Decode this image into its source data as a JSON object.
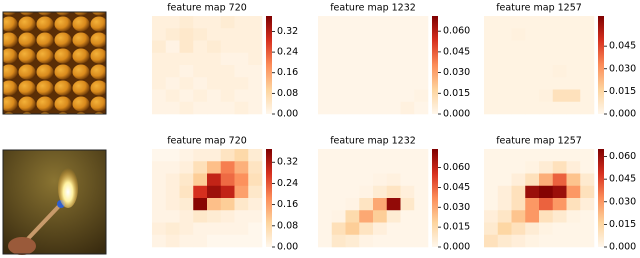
{
  "colormap": [
    "#fff7ec",
    "#fdd49e",
    "#fc8d59",
    "#d7301f",
    "#7f0000"
  ],
  "chart_data": [
    {
      "type": "heatmap",
      "title": "feature map 720",
      "clim": [
        0,
        0.38
      ],
      "cticks": [
        {
          "value": 0,
          "label": "0.00"
        },
        0.08,
        0.16,
        0.24,
        0.32
      ],
      "values": [
        [
          0.02,
          0.02,
          0.03,
          0.02,
          0.02,
          0.03,
          0.02,
          0.02
        ],
        [
          0.02,
          0.03,
          0.04,
          0.03,
          0.02,
          0.02,
          0.02,
          0.02
        ],
        [
          0.03,
          0.01,
          0.04,
          0.02,
          0.03,
          0.02,
          0.02,
          0.02
        ],
        [
          0.02,
          0.02,
          0.02,
          0.02,
          0.02,
          0.01,
          0.01,
          0.02
        ],
        [
          0.02,
          0.02,
          0.01,
          0.02,
          0.02,
          0.02,
          0.01,
          0.01
        ],
        [
          0.02,
          0.01,
          0.02,
          0.01,
          0.02,
          0.02,
          0.02,
          0.01
        ],
        [
          0.01,
          0.02,
          0.01,
          0.02,
          0.01,
          0.02,
          0.01,
          0.01
        ],
        [
          0.01,
          0.01,
          0.02,
          0.01,
          0.01,
          0.01,
          0.02,
          0.01
        ]
      ]
    },
    {
      "type": "heatmap",
      "title": "feature map 1232",
      "clim": [
        0,
        0.071
      ],
      "cticks": [
        {
          "value": 0,
          "label": "0.000"
        },
        0.015,
        {
          "value": 0.03,
          "label": "0.030"
        },
        0.045,
        {
          "value": 0.06,
          "label": "0.060"
        }
      ],
      "values": [
        [
          0.001,
          0.001,
          0.001,
          0.001,
          0.001,
          0.001,
          0.001,
          0.001
        ],
        [
          0.001,
          0.001,
          0.001,
          0.001,
          0.001,
          0.001,
          0.001,
          0.001
        ],
        [
          0.001,
          0.001,
          0.001,
          0.001,
          0.001,
          0.001,
          0.001,
          0.001
        ],
        [
          0.001,
          0.001,
          0.001,
          0.001,
          0.001,
          0.001,
          0.001,
          0.001
        ],
        [
          0.001,
          0.001,
          0.001,
          0.001,
          0.001,
          0.001,
          0.001,
          0.001
        ],
        [
          0.001,
          0.001,
          0.001,
          0.001,
          0.001,
          0.001,
          0.001,
          0.001
        ],
        [
          0.001,
          0.001,
          0.001,
          0.001,
          0.001,
          0.001,
          0.001,
          0.002
        ],
        [
          0.001,
          0.001,
          0.001,
          0.001,
          0.001,
          0.001,
          0.003,
          0.001
        ]
      ]
    },
    {
      "type": "heatmap",
      "title": "feature map 1257",
      "clim": [
        0,
        0.065
      ],
      "cticks": [
        {
          "value": 0,
          "label": "0.000"
        },
        0.015,
        {
          "value": 0.03,
          "label": "0.030"
        },
        0.045
      ],
      "values": [
        [
          0.002,
          0.002,
          0.002,
          0.002,
          0.002,
          0.002,
          0.002,
          0.002
        ],
        [
          0.002,
          0.002,
          0.003,
          0.002,
          0.002,
          0.002,
          0.002,
          0.002
        ],
        [
          0.002,
          0.002,
          0.002,
          0.002,
          0.002,
          0.002,
          0.002,
          0.002
        ],
        [
          0.002,
          0.002,
          0.002,
          0.002,
          0.002,
          0.002,
          0.002,
          0.002
        ],
        [
          0.002,
          0.002,
          0.002,
          0.002,
          0.002,
          0.003,
          0.002,
          0.002
        ],
        [
          0.002,
          0.002,
          0.002,
          0.002,
          0.002,
          0.002,
          0.002,
          0.002
        ],
        [
          0.002,
          0.002,
          0.002,
          0.002,
          0.003,
          0.01,
          0.01,
          0.002
        ],
        [
          0.002,
          0.002,
          0.002,
          0.002,
          0.002,
          0.002,
          0.002,
          0.002
        ]
      ]
    },
    {
      "type": "heatmap",
      "title": "feature map 720",
      "clim": [
        0,
        0.37
      ],
      "cticks": [
        {
          "value": 0,
          "label": "0.00"
        },
        0.08,
        0.16,
        0.24,
        0.32
      ],
      "values": [
        [
          0,
          0,
          0.01,
          0.02,
          0.02,
          0.05,
          0.08,
          0.03
        ],
        [
          0.01,
          0.01,
          0.02,
          0.06,
          0.12,
          0.2,
          0.14,
          0.05
        ],
        [
          0.01,
          0.02,
          0.04,
          0.1,
          0.3,
          0.22,
          0.18,
          0.06
        ],
        [
          0.01,
          0.02,
          0.05,
          0.28,
          0.34,
          0.3,
          0.16,
          0.04
        ],
        [
          0.01,
          0.02,
          0.03,
          0.36,
          0.12,
          0.1,
          0.04,
          0.02
        ],
        [
          0.01,
          0.01,
          0.02,
          0.04,
          0.03,
          0.02,
          0.01,
          0.01
        ],
        [
          0.02,
          0.03,
          0.02,
          0.01,
          0.01,
          0.01,
          0.01,
          0
        ],
        [
          0.01,
          0.02,
          0.01,
          0.01,
          0,
          0,
          0,
          0
        ]
      ]
    },
    {
      "type": "heatmap",
      "title": "feature map 1232",
      "clim": [
        0,
        0.074
      ],
      "cticks": [
        {
          "value": 0,
          "label": "0.000"
        },
        0.015,
        {
          "value": 0.03,
          "label": "0.030"
        },
        0.045,
        {
          "value": 0.06,
          "label": "0.060"
        }
      ],
      "values": [
        [
          0.001,
          0.001,
          0.001,
          0.001,
          0.001,
          0.001,
          0.001,
          0.001
        ],
        [
          0.001,
          0.001,
          0.001,
          0.001,
          0.001,
          0.001,
          0.001,
          0.001
        ],
        [
          0.001,
          0.001,
          0.001,
          0.001,
          0.002,
          0.003,
          0.001,
          0.001
        ],
        [
          0.001,
          0.001,
          0.001,
          0.002,
          0.006,
          0.01,
          0.004,
          0.001
        ],
        [
          0.001,
          0.001,
          0.002,
          0.01,
          0.03,
          0.07,
          0.008,
          0.001
        ],
        [
          0.001,
          0.002,
          0.015,
          0.03,
          0.02,
          0.006,
          0.001,
          0.001
        ],
        [
          0.001,
          0.012,
          0.02,
          0.01,
          0.004,
          0.001,
          0.001,
          0.001
        ],
        [
          0.001,
          0.008,
          0.006,
          0.002,
          0.001,
          0.001,
          0.001,
          0.001
        ]
      ]
    },
    {
      "type": "heatmap",
      "title": "feature map 1257",
      "clim": [
        0,
        0.065
      ],
      "cticks": [
        {
          "value": 0,
          "label": "0.000"
        },
        0.015,
        {
          "value": 0.03,
          "label": "0.030"
        },
        0.045,
        {
          "value": 0.06,
          "label": "0.060"
        }
      ],
      "values": [
        [
          0.001,
          0.001,
          0.001,
          0.001,
          0.001,
          0.001,
          0.001,
          0.001
        ],
        [
          0.001,
          0.001,
          0.001,
          0.002,
          0.005,
          0.01,
          0.004,
          0.001
        ],
        [
          0.001,
          0.001,
          0.004,
          0.01,
          0.025,
          0.04,
          0.02,
          0.006
        ],
        [
          0.001,
          0.004,
          0.01,
          0.06,
          0.064,
          0.06,
          0.03,
          0.01
        ],
        [
          0.001,
          0.004,
          0.01,
          0.03,
          0.04,
          0.03,
          0.01,
          0.004
        ],
        [
          0.004,
          0.008,
          0.02,
          0.03,
          0.01,
          0.006,
          0.002,
          0.001
        ],
        [
          0.006,
          0.015,
          0.01,
          0.005,
          0.002,
          0.001,
          0.001,
          0.001
        ],
        [
          0.01,
          0.006,
          0.004,
          0.002,
          0.001,
          0.001,
          0.001,
          0.001
        ]
      ]
    }
  ]
}
